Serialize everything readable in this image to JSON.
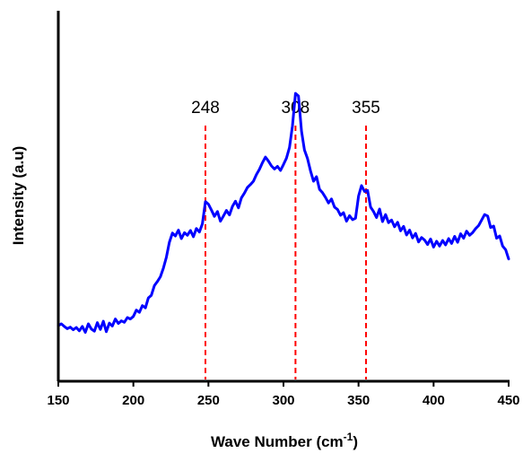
{
  "chart_data": {
    "type": "line",
    "xlabel": "Wave Number (cm",
    "xlabel_sup": "-1",
    "xlabel_tail": ")",
    "ylabel": "Intensity (a.u)",
    "xlim": [
      150,
      450
    ],
    "ylim": [
      0,
      100
    ],
    "xticks": [
      "150",
      "200",
      "250",
      "300",
      "350",
      "400",
      "450"
    ],
    "y_tick_labels": "none",
    "grid": false,
    "legend": "none",
    "series": [
      {
        "color": "#0000ff",
        "x": [
          150,
          152,
          154,
          156,
          158,
          160,
          162,
          164,
          166,
          168,
          170,
          172,
          174,
          176,
          178,
          180,
          182,
          184,
          186,
          188,
          190,
          192,
          194,
          196,
          198,
          200,
          202,
          204,
          206,
          208,
          210,
          212,
          214,
          216,
          218,
          220,
          222,
          224,
          226,
          228,
          230,
          232,
          234,
          236,
          238,
          240,
          242,
          244,
          246,
          248,
          250,
          252,
          254,
          256,
          258,
          260,
          262,
          264,
          266,
          268,
          270,
          272,
          274,
          276,
          278,
          280,
          282,
          284,
          286,
          288,
          290,
          292,
          294,
          296,
          298,
          300,
          302,
          304,
          306,
          308,
          310,
          312,
          314,
          316,
          318,
          320,
          322,
          324,
          326,
          328,
          330,
          332,
          334,
          336,
          338,
          340,
          342,
          344,
          346,
          348,
          350,
          352,
          354,
          356,
          358,
          360,
          362,
          364,
          366,
          368,
          370,
          372,
          374,
          376,
          378,
          380,
          382,
          384,
          386,
          388,
          390,
          392,
          394,
          396,
          398,
          400,
          402,
          404,
          406,
          408,
          410,
          412,
          414,
          416,
          418,
          420,
          422,
          424,
          426,
          428,
          430,
          432,
          434,
          436,
          438,
          440,
          442,
          444,
          446,
          448,
          450
        ],
        "y": [
          15.0,
          15.5,
          14.8,
          14.2,
          14.6,
          13.9,
          14.5,
          13.6,
          14.8,
          13.2,
          15.5,
          14.1,
          13.5,
          15.8,
          14.0,
          16.2,
          13.4,
          15.7,
          14.9,
          16.8,
          15.6,
          16.3,
          15.9,
          17.2,
          16.8,
          17.5,
          19.2,
          18.6,
          20.4,
          19.8,
          22.5,
          23.2,
          25.8,
          26.9,
          28.2,
          30.5,
          33.5,
          37.5,
          40.0,
          39.2,
          40.8,
          38.5,
          40.1,
          39.4,
          40.7,
          39.0,
          41.2,
          40.3,
          42.5,
          48.5,
          47.8,
          46.2,
          44.5,
          45.8,
          43.2,
          44.6,
          46.1,
          44.9,
          47.2,
          48.6,
          46.8,
          49.5,
          50.8,
          52.3,
          53.1,
          54.0,
          55.8,
          57.2,
          59.0,
          60.5,
          59.4,
          58.1,
          57.3,
          58.0,
          56.9,
          58.5,
          60.2,
          63.1,
          68.9,
          77.7,
          77.0,
          67.5,
          62.4,
          60.1,
          56.8,
          54.0,
          55.2,
          51.8,
          50.9,
          49.6,
          48.1,
          49.2,
          47.0,
          46.4,
          44.8,
          45.5,
          43.2,
          44.7,
          43.6,
          44.0,
          50.0,
          52.8,
          51.2,
          51.5,
          47.0,
          45.8,
          44.2,
          46.5,
          43.1,
          45.0,
          42.8,
          43.5,
          41.7,
          42.9,
          40.6,
          41.8,
          39.5,
          40.8,
          38.7,
          39.9,
          37.6,
          38.8,
          38.1,
          36.9,
          38.4,
          36.2,
          37.8,
          36.5,
          38.0,
          36.8,
          38.5,
          37.2,
          39.1,
          37.5,
          39.8,
          38.6,
          40.5,
          39.4,
          40.1,
          41.2,
          42.0,
          43.5,
          45.0,
          44.6,
          41.5,
          41.9,
          38.6,
          39.2,
          36.5,
          35.5,
          33.0
        ]
      }
    ],
    "annotations": [
      {
        "label": "248",
        "x": 248
      },
      {
        "label": "308",
        "x": 308
      },
      {
        "label": "355",
        "x": 355
      }
    ],
    "annotation_line_color": "#ff0000"
  }
}
